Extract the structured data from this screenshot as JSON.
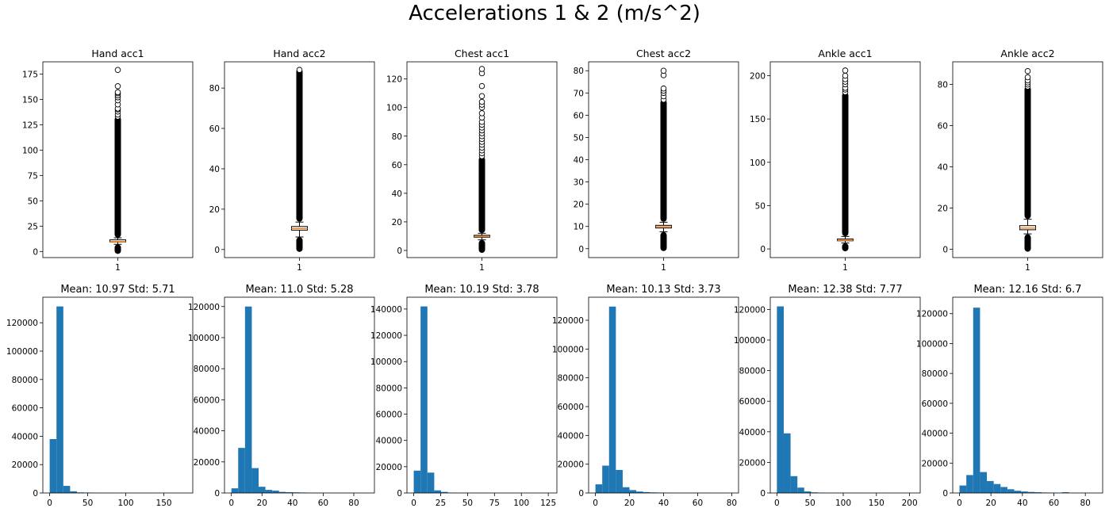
{
  "suptitle": "Accelerations 1 & 2 (m/s^2)",
  "colors": {
    "hist": "#1f77b4",
    "median": "#ff7f0e",
    "box": "#000000",
    "outlier_edge": "#000000"
  },
  "chart_data": [
    {
      "type": "box",
      "title": "Hand acc1",
      "category": "1",
      "ylim": [
        -6,
        187
      ],
      "yticks": [
        0,
        25,
        50,
        75,
        100,
        125,
        150,
        175
      ],
      "stats": {
        "q1": 9.4,
        "median": 9.8,
        "q3": 11.5,
        "whisker_low": 7.1,
        "whisker_high": 13.5
      },
      "fliers_low_max": 7.0,
      "fliers_high_min": 13.6,
      "fliers_high_dense_max": 131,
      "fliers_scattered": [
        133,
        135,
        138,
        140,
        141,
        145,
        149,
        152,
        154,
        156,
        157,
        163,
        179
      ]
    },
    {
      "type": "box",
      "title": "Hand acc2",
      "category": "1",
      "ylim": [
        -4,
        93
      ],
      "yticks": [
        0,
        20,
        40,
        60,
        80
      ],
      "stats": {
        "q1": 9.6,
        "median": 10.4,
        "q3": 11.4,
        "whisker_low": 6.2,
        "whisker_high": 13.6
      },
      "fliers_low_max": 6.1,
      "fliers_high_min": 13.8,
      "fliers_high_dense_max": 88.5,
      "fliers_scattered": [
        89
      ]
    },
    {
      "type": "box",
      "title": "Chest acc1",
      "category": "1",
      "ylim": [
        -5,
        132
      ],
      "yticks": [
        0,
        20,
        40,
        60,
        80,
        100,
        120
      ],
      "stats": {
        "q1": 9.3,
        "median": 9.8,
        "q3": 10.6,
        "whisker_low": 7.4,
        "whisker_high": 12.0
      },
      "fliers_low_max": 7.3,
      "fliers_high_min": 12.2,
      "fliers_high_dense_max": 64,
      "fliers_scattered": [
        66,
        68,
        70,
        72,
        74,
        76,
        78,
        80,
        82,
        84,
        86,
        88,
        90,
        93,
        96,
        100,
        102,
        104,
        108,
        115,
        124,
        127
      ]
    },
    {
      "type": "box",
      "title": "Chest acc2",
      "category": "1",
      "ylim": [
        -4,
        84
      ],
      "yticks": [
        0,
        10,
        20,
        30,
        40,
        50,
        60,
        70,
        80
      ],
      "stats": {
        "q1": 9.3,
        "median": 9.9,
        "q3": 10.5,
        "whisker_low": 7.6,
        "whisker_high": 11.9
      },
      "fliers_low_max": 7.5,
      "fliers_high_min": 12.1,
      "fliers_high_dense_max": 66,
      "fliers_scattered": [
        67,
        68.5,
        70,
        71,
        72,
        78,
        80
      ]
    },
    {
      "type": "box",
      "title": "Ankle acc1",
      "category": "1",
      "ylim": [
        -10,
        216
      ],
      "yticks": [
        0,
        50,
        100,
        150,
        200
      ],
      "stats": {
        "q1": 9.4,
        "median": 10.0,
        "q3": 11.4,
        "whisker_low": 6.8,
        "whisker_high": 14.4
      },
      "fliers_low_max": 6.6,
      "fliers_high_min": 14.7,
      "fliers_high_dense_max": 178,
      "fliers_scattered": [
        181,
        184,
        186,
        190,
        193,
        196,
        200,
        206
      ]
    },
    {
      "type": "box",
      "title": "Ankle acc2",
      "category": "1",
      "ylim": [
        -4,
        91
      ],
      "yticks": [
        0,
        20,
        40,
        60,
        80
      ],
      "stats": {
        "q1": 9.5,
        "median": 10.3,
        "q3": 11.5,
        "whisker_low": 7.5,
        "whisker_high": 14.6
      },
      "fliers_low_max": 7.3,
      "fliers_high_min": 14.8,
      "fliers_high_dense_max": 78,
      "fliers_scattered": [
        79,
        80,
        81,
        82,
        83.5,
        86.5
      ]
    },
    {
      "type": "histogram",
      "title": "Mean: 10.97  Std: 5.71",
      "xlim": [
        -9,
        188
      ],
      "ylim": [
        0,
        138000
      ],
      "xticks": [
        0,
        50,
        100,
        150
      ],
      "yticks": [
        0,
        20000,
        40000,
        60000,
        80000,
        100000,
        120000
      ],
      "bin_start": 0,
      "bin_width": 8.95,
      "counts": [
        38000,
        131500,
        5000,
        1200,
        400,
        300,
        200,
        80,
        50,
        40,
        30,
        20,
        15,
        12,
        10,
        8,
        6,
        5,
        3,
        2
      ]
    },
    {
      "type": "histogram",
      "title": "Mean: 11.0  Std: 5.28",
      "xlim": [
        -4.5,
        93.5
      ],
      "ylim": [
        0,
        126000
      ],
      "xticks": [
        0,
        20,
        40,
        60,
        80
      ],
      "yticks": [
        0,
        20000,
        40000,
        60000,
        80000,
        100000,
        120000
      ],
      "bin_start": 0,
      "bin_width": 4.45,
      "counts": [
        3000,
        29000,
        120000,
        16000,
        4000,
        2000,
        1500,
        700,
        500,
        400,
        300,
        200,
        150,
        100,
        80,
        60,
        40,
        30,
        20,
        10
      ]
    },
    {
      "type": "histogram",
      "title": "Mean: 10.19  Std: 3.78",
      "xlim": [
        -6.3,
        133
      ],
      "ylim": [
        0,
        149000
      ],
      "xticks": [
        0,
        25,
        50,
        75,
        100,
        125
      ],
      "yticks": [
        0,
        20000,
        40000,
        60000,
        80000,
        100000,
        120000,
        140000
      ],
      "bin_start": 0,
      "bin_width": 6.35,
      "counts": [
        17000,
        142000,
        15500,
        2000,
        800,
        300,
        150,
        100,
        80,
        60,
        40,
        30,
        20,
        15,
        10,
        8,
        6,
        4,
        3,
        2
      ]
    },
    {
      "type": "histogram",
      "title": "Mean: 10.13  Std: 3.73",
      "xlim": [
        -4,
        84
      ],
      "ylim": [
        0,
        136000
      ],
      "xticks": [
        0,
        20,
        40,
        60,
        80
      ],
      "yticks": [
        0,
        20000,
        40000,
        60000,
        80000,
        100000,
        120000
      ],
      "bin_start": 0,
      "bin_width": 4.0,
      "counts": [
        6000,
        19000,
        129500,
        16000,
        4000,
        2000,
        1000,
        600,
        400,
        300,
        200,
        150,
        100,
        80,
        60,
        40,
        30,
        20,
        10,
        5
      ]
    },
    {
      "type": "histogram",
      "title": "Mean: 12.38  Std: 7.77",
      "xlim": [
        -10,
        216
      ],
      "ylim": [
        0,
        128000
      ],
      "xticks": [
        0,
        50,
        100,
        150,
        200
      ],
      "yticks": [
        0,
        20000,
        40000,
        60000,
        80000,
        100000,
        120000
      ],
      "bin_start": 0,
      "bin_width": 10.3,
      "counts": [
        122000,
        39000,
        11000,
        3500,
        1000,
        400,
        200,
        100,
        80,
        60,
        50,
        40,
        30,
        20,
        15,
        10,
        8,
        6,
        4,
        3
      ]
    },
    {
      "type": "histogram",
      "title": "Mean: 12.16  Std: 6.7",
      "xlim": [
        -4.3,
        91
      ],
      "ylim": [
        0,
        131000
      ],
      "xticks": [
        0,
        20,
        40,
        60,
        80
      ],
      "yticks": [
        0,
        20000,
        40000,
        60000,
        80000,
        100000,
        120000
      ],
      "bin_start": 0,
      "bin_width": 4.35,
      "counts": [
        5000,
        12000,
        124000,
        14000,
        8000,
        6000,
        4000,
        2500,
        1500,
        1000,
        700,
        500,
        300,
        200,
        150,
        500,
        100,
        50,
        30,
        20
      ]
    }
  ]
}
